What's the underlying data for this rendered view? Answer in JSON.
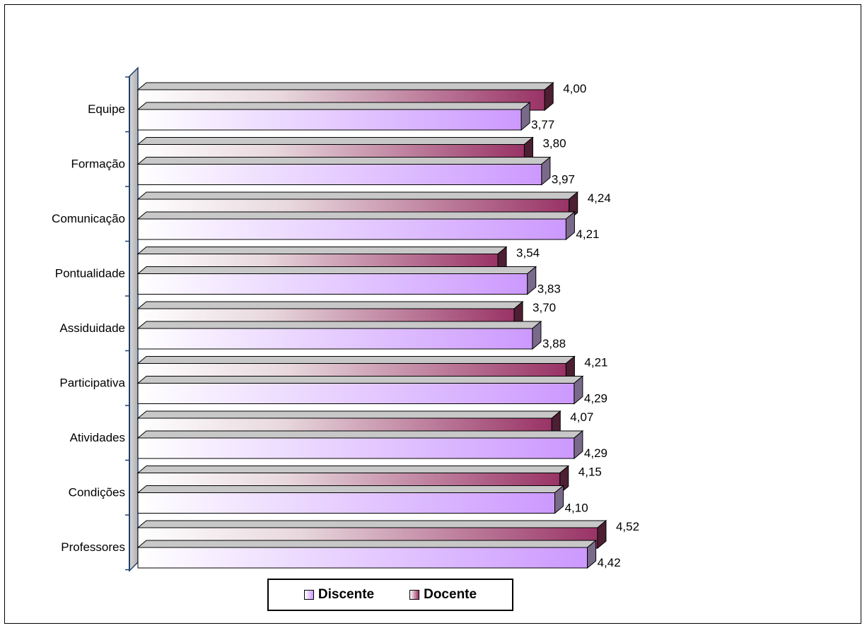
{
  "chart_data": {
    "type": "bar",
    "orientation": "horizontal",
    "title": "",
    "xlabel": "",
    "ylabel": "",
    "xlim": [
      0,
      5
    ],
    "grid": false,
    "legend_position": "bottom",
    "categories": [
      "Equipe",
      "Formação",
      "Comunicação",
      "Pontualidade",
      "Assiduidade",
      "Participativa",
      "Atividades",
      "Condições",
      "Professores"
    ],
    "series": [
      {
        "name": "Discente",
        "values": [
          3.77,
          3.97,
          4.21,
          3.83,
          3.88,
          4.29,
          4.29,
          4.1,
          4.42
        ],
        "labels": [
          "3,77",
          "3,97",
          "4,21",
          "3,83",
          "3,88",
          "4,29",
          "4,29",
          "4,10",
          "4,42"
        ],
        "color_start": "#ffffff",
        "color_end": "#cc99ff",
        "side_color": "#7a6a8a"
      },
      {
        "name": "Docente",
        "values": [
          4.0,
          3.8,
          4.24,
          3.54,
          3.7,
          4.21,
          4.07,
          4.15,
          4.52
        ],
        "labels": [
          "4,00",
          "3,80",
          "4,24",
          "3,54",
          "3,70",
          "4,21",
          "4,07",
          "4,15",
          "4,52"
        ],
        "color_start": "#ffffff",
        "color_end": "#993366",
        "side_color": "#4d1f33"
      }
    ]
  }
}
